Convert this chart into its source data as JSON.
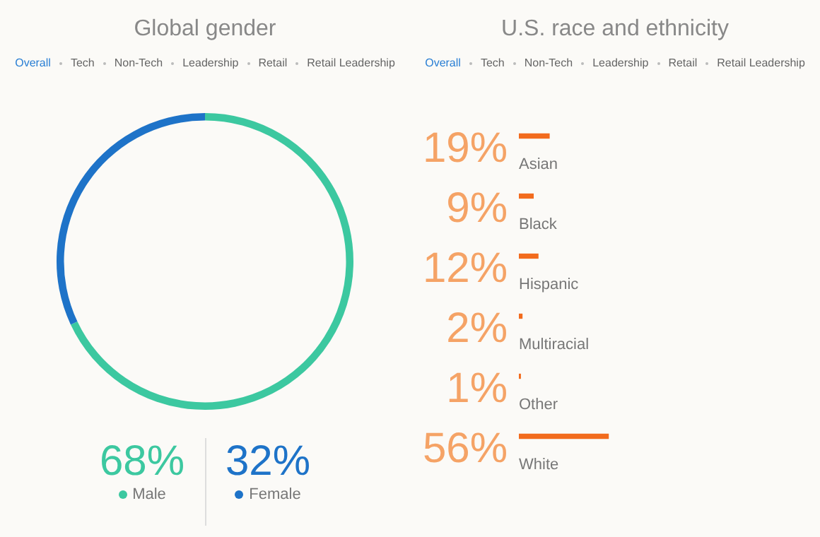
{
  "chart_data": [
    {
      "type": "donut",
      "title": "Global gender",
      "annotations": [
        "Overall",
        "Tech",
        "Non-Tech",
        "Leadership",
        "Retail",
        "Retail Leadership"
      ],
      "categories": [
        "Male",
        "Female"
      ],
      "values": [
        68,
        32
      ],
      "colors": [
        "#3cc8a0",
        "#1e73c8"
      ],
      "legend": "bottom",
      "value_labels": [
        "68%",
        "32%"
      ]
    },
    {
      "type": "bar",
      "orientation": "horizontal",
      "title": "U.S. race and ethnicity",
      "annotations": [
        "Overall",
        "Tech",
        "Non-Tech",
        "Leadership",
        "Retail",
        "Retail Leadership"
      ],
      "categories": [
        "Asian",
        "Black",
        "Hispanic",
        "Multiracial",
        "Other",
        "White"
      ],
      "values": [
        19,
        9,
        12,
        2,
        1,
        56
      ],
      "colors": [
        "#f26b1d",
        "#f26b1d",
        "#f26b1d",
        "#f26b1d",
        "#f26b1d",
        "#f26b1d"
      ],
      "value_labels": [
        "19%",
        "9%",
        "12%",
        "2%",
        "1%",
        "56%"
      ]
    }
  ]
}
